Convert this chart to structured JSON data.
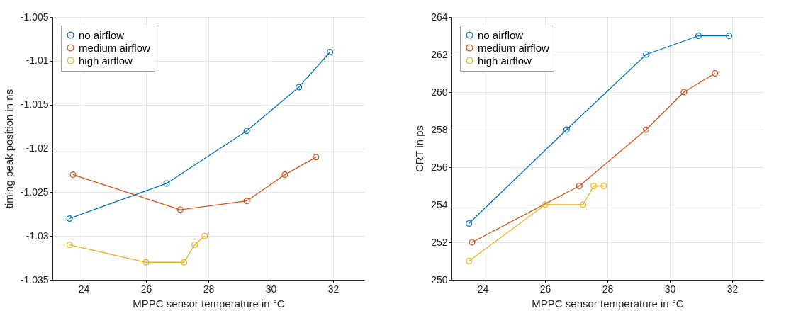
{
  "chart_data": [
    {
      "type": "line",
      "xlabel": "MPPC sensor temperature in °C",
      "ylabel": "timing peak position in ns",
      "series": [
        {
          "name": "no airflow",
          "color": "#0072bd",
          "x": [
            23.55,
            26.66,
            29.23,
            30.9,
            31.9
          ],
          "values": [
            -1.028,
            -1.024,
            -1.018,
            -1.013,
            -1.009
          ]
        },
        {
          "name": "medium airflow",
          "color": "#d95319",
          "x": [
            23.66,
            27.1,
            29.23,
            30.45,
            31.45
          ],
          "values": [
            -1.023,
            -1.027,
            -1.026,
            -1.023,
            -1.021
          ]
        },
        {
          "name": "high airflow",
          "color": "#edb120",
          "x": [
            23.55,
            26.0,
            27.22,
            27.56,
            27.88
          ],
          "values": [
            -1.031,
            -1.033,
            -1.033,
            -1.031,
            -1.03
          ]
        }
      ],
      "xlim": [
        23,
        33
      ],
      "xticks": [
        24,
        26,
        28,
        30,
        32
      ],
      "ylim": [
        -1.035,
        -1.005
      ],
      "yticks": [
        -1.035,
        -1.03,
        -1.025,
        -1.02,
        -1.015,
        -1.01,
        -1.005
      ],
      "grid": true,
      "legend": "top left",
      "marker": "circle",
      "line_style": "solid"
    },
    {
      "type": "line",
      "xlabel": "MPPC sensor temperature in °C",
      "ylabel": "CRT in ps",
      "series": [
        {
          "name": "no airflow",
          "color": "#0072bd",
          "x": [
            23.56,
            26.69,
            29.24,
            30.92,
            31.9
          ],
          "values": [
            253,
            258,
            262,
            263,
            263
          ]
        },
        {
          "name": "medium airflow",
          "color": "#d95319",
          "x": [
            23.66,
            27.1,
            29.24,
            30.45,
            31.45
          ],
          "values": [
            252,
            255,
            258,
            260,
            261
          ]
        },
        {
          "name": "high airflow",
          "color": "#edb120",
          "x": [
            23.56,
            26.0,
            27.22,
            27.56,
            27.88
          ],
          "values": [
            251,
            254,
            254,
            255,
            255
          ]
        }
      ],
      "xlim": [
        23,
        33
      ],
      "xticks": [
        24,
        26,
        28,
        30,
        32
      ],
      "ylim": [
        250,
        264
      ],
      "yticks": [
        250,
        252,
        254,
        256,
        258,
        260,
        262,
        264
      ],
      "grid": true,
      "legend": "top left",
      "marker": "circle",
      "line_style": "solid"
    }
  ]
}
